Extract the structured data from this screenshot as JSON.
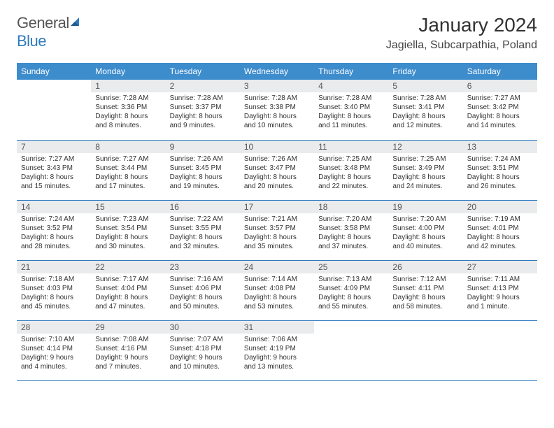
{
  "brand": {
    "word1": "General",
    "word2": "Blue"
  },
  "title": "January 2024",
  "location": "Jagiella, Subcarpathia, Poland",
  "colors": {
    "header_bg": "#3d8ccc",
    "row_divider": "#2f7abf",
    "daynum_bg": "#e9ebec",
    "brand_blue": "#2f7abf"
  },
  "weekdays": [
    "Sunday",
    "Monday",
    "Tuesday",
    "Wednesday",
    "Thursday",
    "Friday",
    "Saturday"
  ],
  "cells": [
    [
      "",
      "1",
      "2",
      "3",
      "4",
      "5",
      "6"
    ],
    [
      "7",
      "8",
      "9",
      "10",
      "11",
      "12",
      "13"
    ],
    [
      "14",
      "15",
      "16",
      "17",
      "18",
      "19",
      "20"
    ],
    [
      "21",
      "22",
      "23",
      "24",
      "25",
      "26",
      "27"
    ],
    [
      "28",
      "29",
      "30",
      "31",
      "",
      "",
      ""
    ]
  ],
  "days": {
    "1": {
      "sunrise": "7:28 AM",
      "sunset": "3:36 PM",
      "dl1": "Daylight: 8 hours",
      "dl2": "and 8 minutes."
    },
    "2": {
      "sunrise": "7:28 AM",
      "sunset": "3:37 PM",
      "dl1": "Daylight: 8 hours",
      "dl2": "and 9 minutes."
    },
    "3": {
      "sunrise": "7:28 AM",
      "sunset": "3:38 PM",
      "dl1": "Daylight: 8 hours",
      "dl2": "and 10 minutes."
    },
    "4": {
      "sunrise": "7:28 AM",
      "sunset": "3:40 PM",
      "dl1": "Daylight: 8 hours",
      "dl2": "and 11 minutes."
    },
    "5": {
      "sunrise": "7:28 AM",
      "sunset": "3:41 PM",
      "dl1": "Daylight: 8 hours",
      "dl2": "and 12 minutes."
    },
    "6": {
      "sunrise": "7:27 AM",
      "sunset": "3:42 PM",
      "dl1": "Daylight: 8 hours",
      "dl2": "and 14 minutes."
    },
    "7": {
      "sunrise": "7:27 AM",
      "sunset": "3:43 PM",
      "dl1": "Daylight: 8 hours",
      "dl2": "and 15 minutes."
    },
    "8": {
      "sunrise": "7:27 AM",
      "sunset": "3:44 PM",
      "dl1": "Daylight: 8 hours",
      "dl2": "and 17 minutes."
    },
    "9": {
      "sunrise": "7:26 AM",
      "sunset": "3:45 PM",
      "dl1": "Daylight: 8 hours",
      "dl2": "and 19 minutes."
    },
    "10": {
      "sunrise": "7:26 AM",
      "sunset": "3:47 PM",
      "dl1": "Daylight: 8 hours",
      "dl2": "and 20 minutes."
    },
    "11": {
      "sunrise": "7:25 AM",
      "sunset": "3:48 PM",
      "dl1": "Daylight: 8 hours",
      "dl2": "and 22 minutes."
    },
    "12": {
      "sunrise": "7:25 AM",
      "sunset": "3:49 PM",
      "dl1": "Daylight: 8 hours",
      "dl2": "and 24 minutes."
    },
    "13": {
      "sunrise": "7:24 AM",
      "sunset": "3:51 PM",
      "dl1": "Daylight: 8 hours",
      "dl2": "and 26 minutes."
    },
    "14": {
      "sunrise": "7:24 AM",
      "sunset": "3:52 PM",
      "dl1": "Daylight: 8 hours",
      "dl2": "and 28 minutes."
    },
    "15": {
      "sunrise": "7:23 AM",
      "sunset": "3:54 PM",
      "dl1": "Daylight: 8 hours",
      "dl2": "and 30 minutes."
    },
    "16": {
      "sunrise": "7:22 AM",
      "sunset": "3:55 PM",
      "dl1": "Daylight: 8 hours",
      "dl2": "and 32 minutes."
    },
    "17": {
      "sunrise": "7:21 AM",
      "sunset": "3:57 PM",
      "dl1": "Daylight: 8 hours",
      "dl2": "and 35 minutes."
    },
    "18": {
      "sunrise": "7:20 AM",
      "sunset": "3:58 PM",
      "dl1": "Daylight: 8 hours",
      "dl2": "and 37 minutes."
    },
    "19": {
      "sunrise": "7:20 AM",
      "sunset": "4:00 PM",
      "dl1": "Daylight: 8 hours",
      "dl2": "and 40 minutes."
    },
    "20": {
      "sunrise": "7:19 AM",
      "sunset": "4:01 PM",
      "dl1": "Daylight: 8 hours",
      "dl2": "and 42 minutes."
    },
    "21": {
      "sunrise": "7:18 AM",
      "sunset": "4:03 PM",
      "dl1": "Daylight: 8 hours",
      "dl2": "and 45 minutes."
    },
    "22": {
      "sunrise": "7:17 AM",
      "sunset": "4:04 PM",
      "dl1": "Daylight: 8 hours",
      "dl2": "and 47 minutes."
    },
    "23": {
      "sunrise": "7:16 AM",
      "sunset": "4:06 PM",
      "dl1": "Daylight: 8 hours",
      "dl2": "and 50 minutes."
    },
    "24": {
      "sunrise": "7:14 AM",
      "sunset": "4:08 PM",
      "dl1": "Daylight: 8 hours",
      "dl2": "and 53 minutes."
    },
    "25": {
      "sunrise": "7:13 AM",
      "sunset": "4:09 PM",
      "dl1": "Daylight: 8 hours",
      "dl2": "and 55 minutes."
    },
    "26": {
      "sunrise": "7:12 AM",
      "sunset": "4:11 PM",
      "dl1": "Daylight: 8 hours",
      "dl2": "and 58 minutes."
    },
    "27": {
      "sunrise": "7:11 AM",
      "sunset": "4:13 PM",
      "dl1": "Daylight: 9 hours",
      "dl2": "and 1 minute."
    },
    "28": {
      "sunrise": "7:10 AM",
      "sunset": "4:14 PM",
      "dl1": "Daylight: 9 hours",
      "dl2": "and 4 minutes."
    },
    "29": {
      "sunrise": "7:08 AM",
      "sunset": "4:16 PM",
      "dl1": "Daylight: 9 hours",
      "dl2": "and 7 minutes."
    },
    "30": {
      "sunrise": "7:07 AM",
      "sunset": "4:18 PM",
      "dl1": "Daylight: 9 hours",
      "dl2": "and 10 minutes."
    },
    "31": {
      "sunrise": "7:06 AM",
      "sunset": "4:19 PM",
      "dl1": "Daylight: 9 hours",
      "dl2": "and 13 minutes."
    }
  },
  "labels": {
    "sunrise_prefix": "Sunrise: ",
    "sunset_prefix": "Sunset: "
  }
}
